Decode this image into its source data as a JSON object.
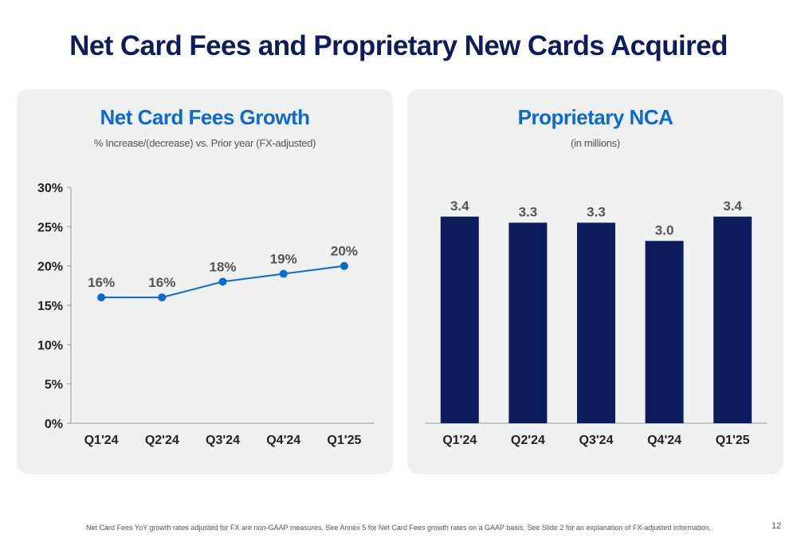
{
  "page": {
    "title": "Net Card Fees and Proprietary New Cards Acquired",
    "footnote": "Net Card Fees YoY growth rates adjusted for FX are non-GAAP measures. See Annex 5 for Net Card Fees growth rates on a GAAP basis. See Slide 2 for an explanation of FX-adjusted information.",
    "page_number": "12"
  },
  "colors": {
    "title": "#0c1c5c",
    "panel_title": "#0a6ad2",
    "line": "#0a6ad2",
    "bar": "#0c1c5c",
    "panel_bg": "#eff0f0"
  },
  "chart_data": [
    {
      "type": "line",
      "title": "Net Card Fees Growth",
      "subtitle": "% Increase/(decrease) vs. Prior year (FX-adjusted)",
      "categories": [
        "Q1'24",
        "Q2'24",
        "Q3'24",
        "Q4'24",
        "Q1'25"
      ],
      "values": [
        16,
        16,
        18,
        19,
        20
      ],
      "data_labels": [
        "16%",
        "16%",
        "18%",
        "19%",
        "20%"
      ],
      "yticks": [
        0,
        5,
        10,
        15,
        20,
        25,
        30
      ],
      "ytick_labels": [
        "0%",
        "5%",
        "10%",
        "15%",
        "20%",
        "25%",
        "30%"
      ],
      "ylim": [
        0,
        30
      ],
      "grid": false,
      "legend": "none"
    },
    {
      "type": "bar",
      "title": "Proprietary NCA",
      "subtitle": "(in millions)",
      "categories": [
        "Q1'24",
        "Q2'24",
        "Q3'24",
        "Q4'24",
        "Q1'25"
      ],
      "values": [
        3.4,
        3.3,
        3.3,
        3.0,
        3.4
      ],
      "data_labels": [
        "3.4",
        "3.3",
        "3.3",
        "3.0",
        "3.4"
      ],
      "ylim": [
        0,
        4
      ],
      "grid": false,
      "legend": "none"
    }
  ]
}
